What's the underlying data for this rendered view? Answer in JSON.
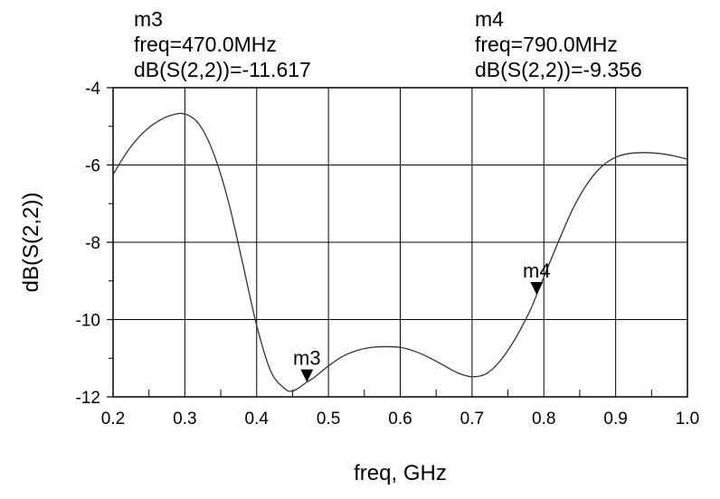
{
  "chart_data": {
    "type": "line",
    "xlabel": "freq, GHz",
    "ylabel": "dB(S(2,2))",
    "xlim": [
      0.2,
      1.0
    ],
    "ylim": [
      -12,
      -4
    ],
    "x_ticks": [
      "0.2",
      "0.3",
      "0.4",
      "0.5",
      "0.6",
      "0.7",
      "0.8",
      "0.9",
      "1.0"
    ],
    "y_ticks": [
      "-4",
      "-6",
      "-8",
      "-10",
      "-12"
    ],
    "x_minor_step": 0.05,
    "y_minor_step": 1,
    "grid": true,
    "grid_color": "#000000",
    "line_color": "#333333",
    "series": [
      {
        "x": [
          0.2,
          0.22,
          0.24,
          0.26,
          0.28,
          0.3,
          0.32,
          0.34,
          0.36,
          0.38,
          0.4,
          0.42,
          0.44,
          0.45,
          0.46,
          0.47,
          0.48,
          0.5,
          0.52,
          0.54,
          0.56,
          0.58,
          0.6,
          0.62,
          0.64,
          0.66,
          0.68,
          0.7,
          0.72,
          0.74,
          0.76,
          0.78,
          0.79,
          0.8,
          0.82,
          0.84,
          0.86,
          0.88,
          0.9,
          0.92,
          0.94,
          0.96,
          0.98,
          1.0
        ],
        "y": [
          -6.25,
          -5.65,
          -5.2,
          -4.9,
          -4.72,
          -4.68,
          -4.95,
          -5.7,
          -6.9,
          -8.5,
          -10.15,
          -11.35,
          -11.8,
          -11.85,
          -11.75,
          -11.617,
          -11.5,
          -11.2,
          -10.95,
          -10.8,
          -10.72,
          -10.7,
          -10.72,
          -10.82,
          -10.98,
          -11.18,
          -11.38,
          -11.48,
          -11.4,
          -11.05,
          -10.5,
          -9.8,
          -9.356,
          -8.9,
          -8.0,
          -7.15,
          -6.5,
          -6.05,
          -5.8,
          -5.7,
          -5.68,
          -5.7,
          -5.76,
          -5.85
        ]
      }
    ],
    "markers": [
      {
        "name": "m3",
        "x": 0.47,
        "y": -11.617,
        "freq_line": "freq=470.0MHz",
        "value_line": "dB(S(2,2))=-11.617"
      },
      {
        "name": "m4",
        "x": 0.79,
        "y": -9.356,
        "freq_line": "freq=790.0MHz",
        "value_line": "dB(S(2,2))=-9.356"
      }
    ]
  }
}
